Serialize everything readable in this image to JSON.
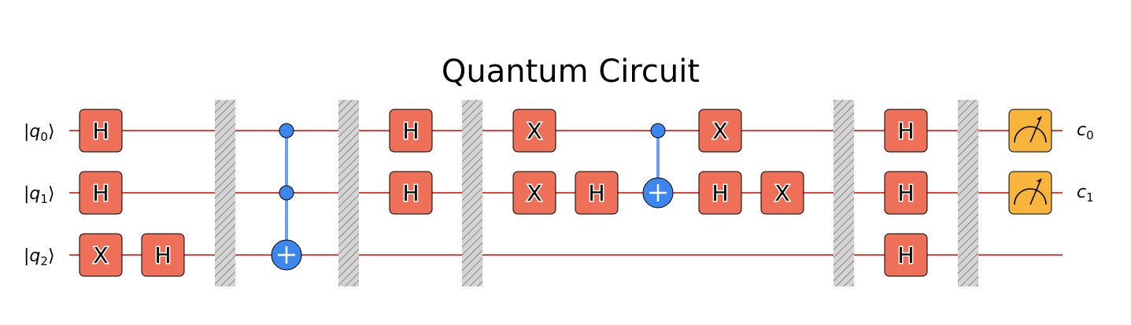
{
  "title": "Quantum Circuit",
  "colors": {
    "wire": "#e8413c",
    "gate_fill": "#ee7058",
    "control": "#3d86ee",
    "control_line": "#6aa0ec",
    "measure_fill": "#f9b43c",
    "barrier_fill": "#d4d4d4"
  },
  "qubits": [
    {
      "label": "q",
      "index": "0"
    },
    {
      "label": "q",
      "index": "1"
    },
    {
      "label": "q",
      "index": "2"
    }
  ],
  "clbits": [
    {
      "label": "c",
      "index": "0",
      "qubit": 0
    },
    {
      "label": "c",
      "index": "1",
      "qubit": 1
    }
  ],
  "operations": [
    {
      "type": "gate",
      "label": "H",
      "qubit": 0,
      "column": 0
    },
    {
      "type": "gate",
      "label": "H",
      "qubit": 1,
      "column": 0
    },
    {
      "type": "gate",
      "label": "X",
      "qubit": 2,
      "column": 0
    },
    {
      "type": "gate",
      "label": "H",
      "qubit": 2,
      "column": 1
    },
    {
      "type": "barrier",
      "column": 2
    },
    {
      "type": "ccx",
      "controls": [
        0,
        1
      ],
      "target": 2,
      "column": 3
    },
    {
      "type": "barrier",
      "column": 4
    },
    {
      "type": "gate",
      "label": "H",
      "qubit": 0,
      "column": 5
    },
    {
      "type": "gate",
      "label": "H",
      "qubit": 1,
      "column": 5
    },
    {
      "type": "barrier",
      "column": 6
    },
    {
      "type": "gate",
      "label": "X",
      "qubit": 0,
      "column": 7
    },
    {
      "type": "gate",
      "label": "X",
      "qubit": 1,
      "column": 7
    },
    {
      "type": "gate",
      "label": "H",
      "qubit": 1,
      "column": 8
    },
    {
      "type": "cx",
      "controls": [
        0
      ],
      "target": 1,
      "column": 9
    },
    {
      "type": "gate",
      "label": "X",
      "qubit": 0,
      "column": 10
    },
    {
      "type": "gate",
      "label": "H",
      "qubit": 1,
      "column": 10
    },
    {
      "type": "gate",
      "label": "X",
      "qubit": 1,
      "column": 11
    },
    {
      "type": "barrier",
      "column": 12
    },
    {
      "type": "gate",
      "label": "H",
      "qubit": 0,
      "column": 13
    },
    {
      "type": "gate",
      "label": "H",
      "qubit": 1,
      "column": 13
    },
    {
      "type": "gate",
      "label": "H",
      "qubit": 2,
      "column": 13
    },
    {
      "type": "barrier",
      "column": 14
    },
    {
      "type": "measure",
      "qubit": 0,
      "column": 15
    },
    {
      "type": "measure",
      "qubit": 1,
      "column": 15
    }
  ]
}
